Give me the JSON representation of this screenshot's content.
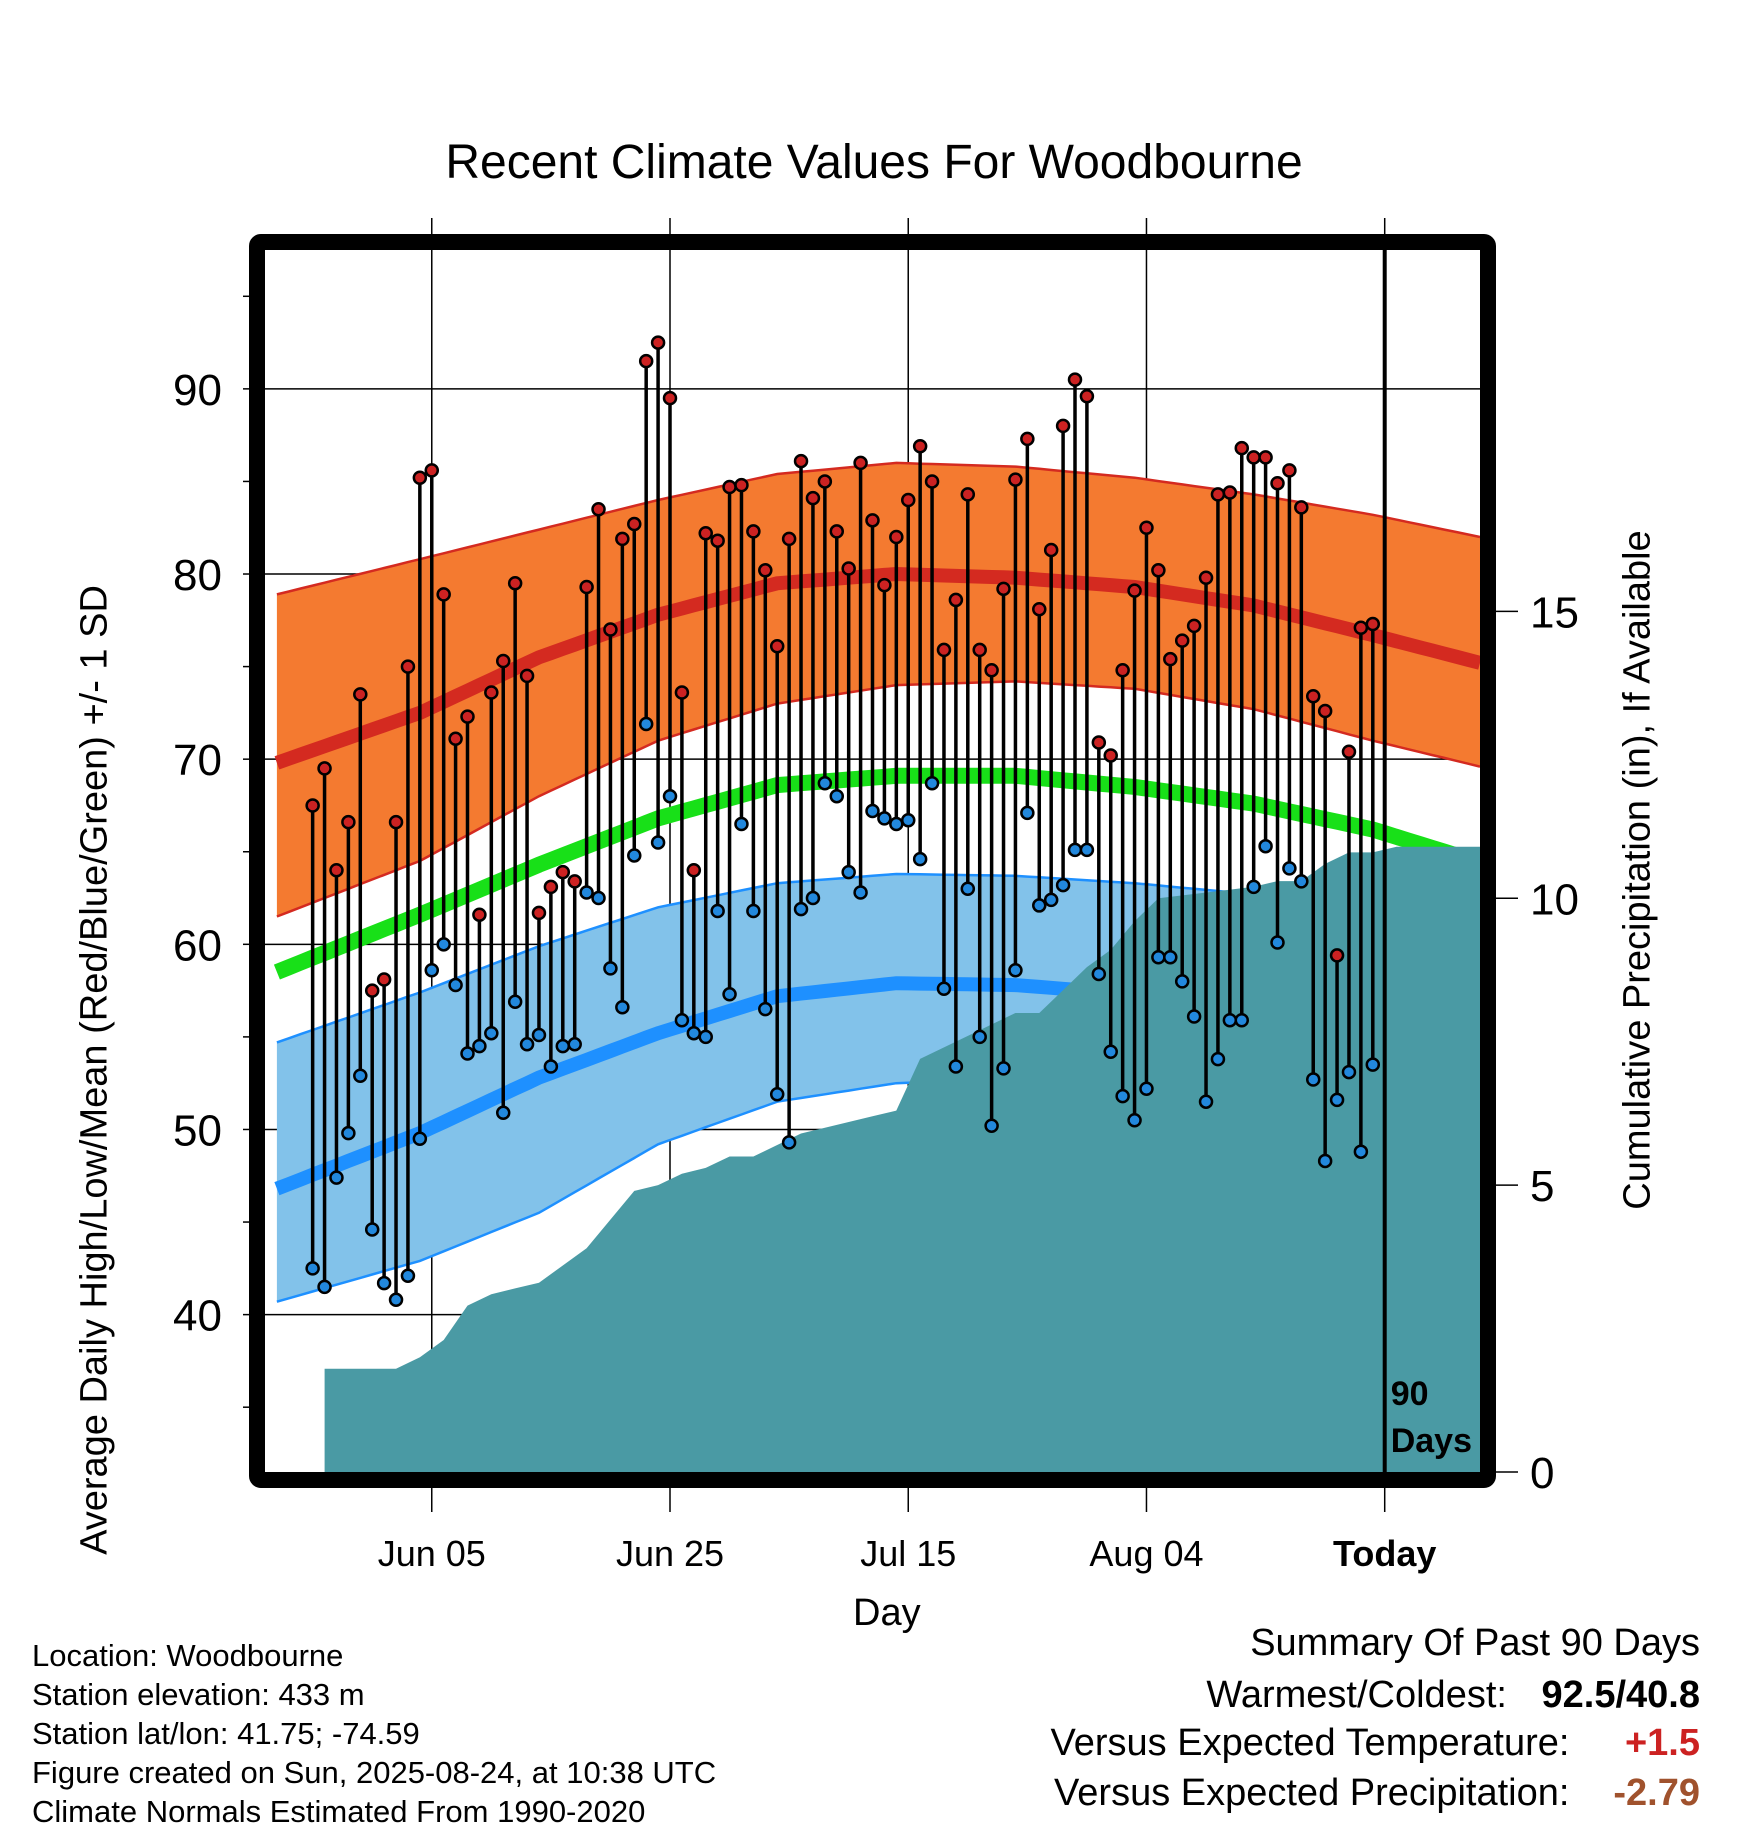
{
  "title": "Recent Climate Values For Woodbourne",
  "y_left_label": "Average Daily High/Low/Mean (Red/Blue/Green) +/- 1 SD",
  "y_right_label": "Cumulative Precipitation (in), If Available",
  "x_label": "Day",
  "colors": {
    "high_band": "#f47a30",
    "high_mean": "#d42a20",
    "low_band": "#82c2ea",
    "low_mean": "#1e90ff",
    "daily_mean": "#18e018",
    "precip": "#4a9aa4",
    "high_dot": "#cc2222",
    "low_dot": "#2288dd"
  },
  "info": {
    "location": "Location: Woodbourne",
    "elevation": "Station elevation: 433 m",
    "latlon": "Station lat/lon: 41.75; -74.59",
    "created": "Figure created on Sun, 2025-08-24, at 10:38 UTC",
    "normals": "Climate Normals Estimated From 1990-2020"
  },
  "summary": {
    "title": "Summary Of Past 90 Days",
    "warmest_label": "Warmest/Coldest:",
    "warmest_value": "92.5/40.8",
    "temp_label": "Versus Expected Temperature:",
    "temp_value": "+1.5",
    "temp_color": "#cc2222",
    "precip_label": "Versus Expected Precipitation:",
    "precip_value": "-2.79",
    "precip_color": "#a0522d"
  },
  "chart_data": {
    "type": "line",
    "today_marker": "Today",
    "days_marker": [
      "90",
      "Days"
    ],
    "xlim_days": [
      -93,
      9
    ],
    "ylim_temp": [
      31.5,
      97.5
    ],
    "ylim_precip": [
      0,
      21.3
    ],
    "temp_ticks": [
      40,
      50,
      60,
      70,
      80,
      90
    ],
    "precip_ticks": [
      0,
      5,
      10,
      15
    ],
    "x_ticks": [
      {
        "day": -79,
        "label": "Jun 05"
      },
      {
        "day": -59,
        "label": "Jun 25"
      },
      {
        "day": -39,
        "label": "Jul 15"
      },
      {
        "day": -19,
        "label": "Aug 04"
      },
      {
        "day": 1,
        "label": "Today"
      }
    ],
    "normal_high": {
      "day": [
        -92,
        -80,
        -70,
        -60,
        -50,
        -40,
        -30,
        -20,
        -10,
        0,
        9
      ],
      "mean": [
        69.8,
        72.5,
        75.5,
        77.8,
        79.5,
        80.0,
        79.8,
        79.3,
        78.3,
        76.7,
        75.2
      ],
      "upper": [
        78.9,
        80.8,
        82.4,
        84.0,
        85.4,
        86.0,
        85.8,
        85.2,
        84.3,
        83.2,
        82.0
      ],
      "lower": [
        61.5,
        64.5,
        68.0,
        71.0,
        73.0,
        74.0,
        74.2,
        73.8,
        72.7,
        71.0,
        69.6
      ]
    },
    "normal_mean": {
      "day": [
        -92,
        -80,
        -70,
        -60,
        -50,
        -40,
        -30,
        -20,
        -10,
        0,
        9
      ],
      "mean": [
        58.5,
        61.6,
        64.3,
        66.8,
        68.6,
        69.1,
        69.1,
        68.5,
        67.6,
        66.2,
        64.4
      ]
    },
    "normal_low": {
      "day": [
        -92,
        -80,
        -70,
        -60,
        -50,
        -40,
        -30,
        -20,
        -10,
        0,
        9
      ],
      "mean": [
        46.8,
        49.8,
        52.8,
        55.2,
        57.2,
        57.9,
        57.8,
        57.3,
        56.5,
        55.3,
        53.6
      ],
      "upper": [
        54.7,
        57.4,
        59.9,
        62.0,
        63.3,
        63.8,
        63.7,
        63.3,
        62.7,
        61.6,
        60.2
      ],
      "lower": [
        40.7,
        42.9,
        45.5,
        49.2,
        51.5,
        52.5,
        52.7,
        52.5,
        51.8,
        50.0,
        47.8
      ]
    },
    "series": [
      {
        "name": "High",
        "values": [
          67.5,
          69.5,
          64.0,
          66.6,
          73.5,
          57.5,
          58.1,
          66.6,
          75.0,
          85.2,
          85.6,
          78.9,
          71.1,
          72.3,
          61.6,
          73.6,
          75.3,
          79.5,
          74.5,
          61.7,
          63.1,
          63.9,
          63.4,
          79.3,
          83.5,
          77.0,
          81.9,
          82.7,
          91.5,
          92.5,
          89.5,
          73.6,
          64.0,
          82.2,
          81.8,
          84.7,
          84.8,
          82.3,
          80.2,
          76.1,
          81.9,
          86.1,
          84.1,
          85.0,
          82.3,
          80.3,
          86.0,
          82.9,
          79.4,
          82.0,
          84.0,
          86.9,
          85.0,
          75.9,
          78.6,
          84.3,
          75.9,
          74.8,
          79.2,
          85.1,
          87.3,
          78.1,
          81.3,
          88.0,
          90.5,
          89.6,
          70.9,
          70.2,
          74.8,
          79.1,
          82.5,
          80.2,
          75.4,
          76.4,
          77.2,
          79.8,
          84.3,
          84.4,
          86.8,
          86.3,
          86.3,
          84.9,
          85.6,
          83.6,
          73.4,
          72.6,
          59.4,
          70.4,
          77.1,
          77.3
        ]
      },
      {
        "name": "Low",
        "values": [
          42.5,
          41.5,
          47.4,
          49.8,
          52.9,
          44.6,
          41.7,
          40.8,
          42.1,
          49.5,
          58.6,
          60.0,
          57.8,
          54.1,
          54.5,
          55.2,
          50.9,
          56.9,
          54.6,
          55.1,
          53.4,
          54.5,
          54.6,
          62.8,
          62.5,
          58.7,
          56.6,
          64.8,
          71.9,
          65.5,
          68.0,
          55.9,
          55.2,
          55.0,
          61.8,
          57.3,
          66.5,
          61.8,
          56.5,
          51.9,
          49.3,
          61.9,
          62.5,
          68.7,
          68.0,
          63.9,
          62.8,
          67.2,
          66.8,
          66.5,
          66.7,
          64.6,
          68.7,
          57.6,
          53.4,
          63.0,
          55.0,
          50.2,
          53.3,
          58.6,
          67.1,
          62.1,
          62.4,
          63.2,
          65.1,
          65.1,
          58.4,
          54.2,
          51.8,
          50.5,
          52.2,
          59.3,
          59.3,
          58.0,
          56.1,
          51.5,
          53.8,
          55.9,
          55.9,
          63.1,
          65.3,
          60.1,
          64.1,
          63.4,
          52.7,
          48.3,
          51.6,
          53.1,
          48.8,
          53.5
        ]
      }
    ],
    "precip_cumulative": {
      "day": [
        -88,
        -84,
        -82,
        -80,
        -78,
        -76,
        -74,
        -72,
        -70,
        -68,
        -66,
        -64,
        -62,
        -60,
        -58,
        -56,
        -54,
        -52,
        -50,
        -48,
        -46,
        -44,
        -42,
        -40,
        -38,
        -30,
        -28,
        -26,
        -24,
        -22,
        -20,
        -18,
        -10,
        -8,
        -6,
        -4,
        -2,
        0,
        2,
        9
      ],
      "value": [
        1.8,
        1.8,
        1.8,
        2.0,
        2.3,
        2.9,
        3.1,
        3.2,
        3.3,
        3.6,
        3.9,
        4.4,
        4.9,
        5.0,
        5.2,
        5.3,
        5.5,
        5.5,
        5.7,
        5.9,
        6.0,
        6.1,
        6.2,
        6.3,
        7.2,
        8.0,
        8.0,
        8.4,
        8.8,
        9.1,
        9.6,
        10.0,
        10.2,
        10.3,
        10.3,
        10.6,
        10.8,
        10.8,
        10.9,
        10.9
      ]
    }
  }
}
